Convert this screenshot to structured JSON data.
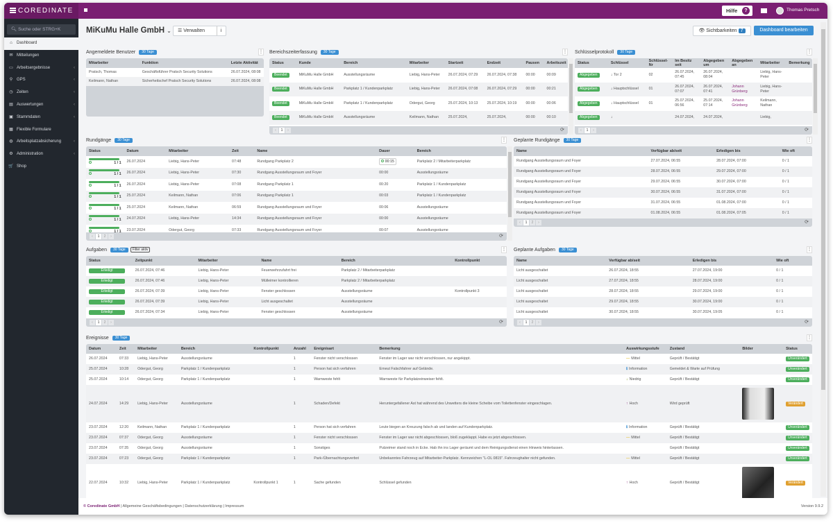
{
  "app": {
    "logo": "COREDINATE",
    "help_label": "Hilfe",
    "user_name": "Thomas Pretsch"
  },
  "colors": {
    "brand": "#7a1f72",
    "sidebar": "#22272e",
    "accent": "#3a8fd3",
    "success": "#4cae5c",
    "warning": "#e0a030"
  },
  "sidebar": {
    "search_placeholder": "Suche oder STRG+K",
    "items": [
      {
        "label": "Dashboard",
        "icon": "dashboard-icon",
        "glyph": "⌂",
        "active": true,
        "chevron": false
      },
      {
        "label": "Mitteilungen",
        "icon": "mail-icon",
        "glyph": "✉",
        "chevron": false
      },
      {
        "label": "Arbeitsergebnisse",
        "icon": "monitor-icon",
        "glyph": "▭",
        "chevron": true
      },
      {
        "label": "GPS",
        "icon": "map-pin-icon",
        "glyph": "⚲",
        "chevron": true
      },
      {
        "label": "Zeiten",
        "icon": "clock-icon",
        "glyph": "◷",
        "chevron": true
      },
      {
        "label": "Auswertungen",
        "icon": "chart-icon",
        "glyph": "▤",
        "chevron": true
      },
      {
        "label": "Stammdaten",
        "icon": "database-icon",
        "glyph": "▣",
        "chevron": true
      },
      {
        "label": "Flexible Formulare",
        "icon": "form-icon",
        "glyph": "▦",
        "chevron": false
      },
      {
        "label": "Arbeitsplatzabsicherung",
        "icon": "globe-icon",
        "glyph": "◍",
        "chevron": true
      },
      {
        "label": "Administration",
        "icon": "cogs-icon",
        "glyph": "⚙",
        "chevron": true
      },
      {
        "label": "Shop",
        "icon": "cart-icon",
        "glyph": "🛒",
        "chevron": false
      }
    ]
  },
  "header": {
    "title": "MiKuMu Halle GmbH",
    "manage_label": "Verwalten",
    "info_label": "i",
    "visibility_label": "Sichtbarkeiten",
    "visibility_count": "7",
    "edit_label": "Dashboard bearbeiten"
  },
  "tables": {
    "benutzer": {
      "title": "Angemeldete Benutzer",
      "badge": "30 Tage",
      "columns": [
        "Mitarbeiter",
        "Funktion",
        "Letzte Aktivität"
      ],
      "rows": [
        [
          "Pratsch, Thomas",
          "Geschäftsführer Pratsch Security Solutions",
          "26.07.2024, 08:08"
        ],
        [
          "Keilmann, Nathan",
          "Sicherheitschef Pratsch Security Solutions",
          "26.07.2024, 08:08"
        ]
      ]
    },
    "bereich": {
      "title": "Bereichszeiterfassung",
      "badge": "30 Tage",
      "columns": [
        "Status",
        "Kunde",
        "Bereich",
        "Mitarbeiter",
        "Startzeit",
        "Endzeit",
        "Pausen",
        "Arbeitszeit"
      ],
      "rows": [
        [
          "Beendet",
          "MiKuMu Halle GmbH",
          "Ausstellungsräume",
          "Liebig, Hans-Peter",
          "26.07.2024, 07:29",
          "26.07.2024, 07:38",
          "00:00",
          "00:09"
        ],
        [
          "Beendet",
          "MiKuMu Halle GmbH",
          "Parkplatz 1 / Kundenparkplatz",
          "Liebig, Hans-Peter",
          "26.07.2024, 07:08",
          "26.07.2024, 07:29",
          "00:00",
          "00:21"
        ],
        [
          "Beendet",
          "MiKuMu Halle GmbH",
          "Parkplatz 1 / Kundenparkplatz",
          "Odergut, Georg",
          "25.07.2024, 10:13",
          "25.07.2024, 10:19",
          "00:00",
          "00:06"
        ],
        [
          "Beendet",
          "MiKuMu Halle GmbH",
          "Ausstellungsräume",
          "Keilmann, Nathan",
          "25.07.2024,",
          "25.07.2024,",
          "00:00",
          "00:10"
        ]
      ],
      "pages": [
        "1"
      ]
    },
    "schluessel": {
      "title": "Schlüsselprotokoll",
      "badge": "30 Tage",
      "columns": [
        "Status",
        "Schlüssel",
        "Schlüssel-Nr",
        "Im Besitz seit",
        "Abgegeben um",
        "Abgegeben an",
        "Mitarbeiter",
        "Bemerkung"
      ],
      "rows": [
        [
          "Abgegeben",
          "↓ Tor 2",
          "02",
          "26.07.2024, 07:45",
          "26.07.2024, 08:04",
          "",
          "Liebig, Hans-Peter",
          ""
        ],
        [
          "Abgegeben",
          "↓ Hauptschlüssel",
          "01",
          "26.07.2024, 07:07",
          "26.07.2024, 07:41",
          "Johann Grünberg",
          "Liebig, Hans-Peter",
          ""
        ],
        [
          "Abgegeben",
          "↓ Hauptschlüssel",
          "01",
          "25.07.2024, 06:56",
          "25.07.2024, 07:14",
          "Johann Grünberg",
          "Keilmann, Nathan",
          ""
        ],
        [
          "Abgegeben",
          "↓",
          "",
          "24.07.2024,",
          "24.07.2024,",
          "",
          "Liebig,",
          ""
        ]
      ],
      "pages": [
        "1"
      ]
    },
    "rundgaenge": {
      "title": "Rundgänge",
      "badge": "30 Tage",
      "columns": [
        "Status",
        "Datum",
        "Mitarbeiter",
        "Zeit",
        "Name",
        "Dauer",
        "Bereich"
      ],
      "rows": [
        [
          "1 / 1",
          "26.07.2024",
          "Liebig, Hans-Peter",
          "07:48",
          "Rundgang Parkplatz 2",
          "00:15",
          "Parkplatz 2 / Mitarbeiterparkplatz"
        ],
        [
          "1 / 1",
          "26.07.2024",
          "Liebig, Hans-Peter",
          "07:30",
          "Rundgang Ausstellungsraum und Foyer",
          "00:00",
          "Ausstellungsräume"
        ],
        [
          "1 / 1",
          "26.07.2024",
          "Liebig, Hans-Peter",
          "07:08",
          "Rundgang Parkplatz 1",
          "00:20",
          "Parkplatz 1 / Kundenparkplatz"
        ],
        [
          "1 / 1",
          "25.07.2024",
          "Keilmann, Nathan",
          "07:06",
          "Rundgang Parkplatz 1",
          "00:03",
          "Parkplatz 1 / Kundenparkplatz"
        ],
        [
          "1 / 1",
          "25.07.2024",
          "Keilmann, Nathan",
          "06:59",
          "Rundgang Ausstellungsraum und Foyer",
          "00:06",
          "Ausstellungsräume"
        ],
        [
          "1 / 1",
          "24.07.2024",
          "Liebig, Hans-Peter",
          "14:34",
          "Rundgang Ausstellungsraum und Foyer",
          "00:00",
          "Ausstellungsräume"
        ],
        [
          "1 / 1",
          "23.07.2024",
          "Odergut, Georg",
          "07:33",
          "Rundgang Ausstellungsraum und Foyer",
          "00:07",
          "Ausstellungsräume"
        ]
      ],
      "pages": [
        "1",
        "2"
      ]
    },
    "geplRund": {
      "title": "Geplante Rundgänge",
      "badge": "30 Tage",
      "columns": [
        "Name",
        "Verfügbar ab/seit",
        "Erledigen bis",
        "Wie oft"
      ],
      "rows": [
        [
          "Rundgang Ausstellungsraum und Foyer",
          "27.07.2024, 06:55",
          "28.07.2024, 07:00",
          "0 / 1"
        ],
        [
          "Rundgang Ausstellungsraum und Foyer",
          "28.07.2024, 06:55",
          "29.07.2024, 07:00",
          "0 / 1"
        ],
        [
          "Rundgang Ausstellungsraum und Foyer",
          "29.07.2024, 06:55",
          "30.07.2024, 07:00",
          "0 / 1"
        ],
        [
          "Rundgang Ausstellungsraum und Foyer",
          "30.07.2024, 06:55",
          "31.07.2024, 07:00",
          "0 / 1"
        ],
        [
          "Rundgang Ausstellungsraum und Foyer",
          "31.07.2024, 06:55",
          "01.08.2024, 07:00",
          "0 / 1"
        ],
        [
          "Rundgang Ausstellungsraum und Foyer",
          "01.08.2024, 06:55",
          "01.08.2024, 07:05",
          "0 / 1"
        ]
      ],
      "pages": [
        "1",
        "2"
      ]
    },
    "aufgaben": {
      "title": "Aufgaben",
      "badge": "30 Tage",
      "filter": "Filter aktiv",
      "columns": [
        "Status",
        "Zeitpunkt",
        "Mitarbeiter",
        "Name",
        "Bereich",
        "Kontrollpunkt"
      ],
      "rows": [
        [
          "Erledigt",
          "26.07.2024, 07:46",
          "Liebig, Hans-Peter",
          "Feuerwehrzufahrt frei",
          "Parkplatz 2 / Mitarbeiterparkplatz",
          ""
        ],
        [
          "Erledigt",
          "26.07.2024, 07:46",
          "Liebig, Hans-Peter",
          "Mülleimer kontrollieren",
          "Parkplatz 2 / Mitarbeiterparkplatz",
          ""
        ],
        [
          "Erledigt",
          "26.07.2024, 07:39",
          "Liebig, Hans-Peter",
          "Fenster geschlossen",
          "Ausstellungsräume",
          "Kontrollpunkt 3"
        ],
        [
          "Erledigt",
          "26.07.2024, 07:39",
          "Liebig, Hans-Peter",
          "Licht ausgeschaltet",
          "Ausstellungsräume",
          ""
        ],
        [
          "Erledigt",
          "26.07.2024, 07:34",
          "Liebig, Hans-Peter",
          "Fenster geschlossen",
          "Ausstellungsräume",
          ""
        ]
      ],
      "pages": [
        "1",
        "2"
      ]
    },
    "geplAuf": {
      "title": "Geplante Aufgaben",
      "badge": "30 Tage",
      "columns": [
        "Name",
        "Verfügbar ab/seit",
        "Erledigen bis",
        "Wie oft"
      ],
      "rows": [
        [
          "Licht ausgeschaltet",
          "26.07.2024, 18:55",
          "27.07.2024, 19:00",
          "0 / 1"
        ],
        [
          "Licht ausgeschaltet",
          "27.07.2024, 18:55",
          "28.07.2024, 19:00",
          "0 / 1"
        ],
        [
          "Licht ausgeschaltet",
          "28.07.2024, 18:55",
          "29.07.2024, 19:00",
          "0 / 1"
        ],
        [
          "Licht ausgeschaltet",
          "29.07.2024, 18:55",
          "30.07.2024, 19:00",
          "0 / 1"
        ],
        [
          "Licht ausgeschaltet",
          "30.07.2024, 18:55",
          "30.07.2024, 19:05",
          "0 / 1"
        ]
      ],
      "pages": [
        "1",
        "2"
      ]
    },
    "ereignisse": {
      "title": "Ereignisse",
      "badge": "30 Tage",
      "columns": [
        "Datum",
        "Zeit",
        "Mitarbeiter",
        "Bereich",
        "Kontrollpunkt",
        "Anzahl",
        "Ereignisart",
        "Bemerkung",
        "Auswirkungsstufe",
        "Zustand",
        "Bilder",
        "Status"
      ],
      "rows": [
        [
          "26.07.2024",
          "07:33",
          "Liebig, Hans-Peter",
          "Ausstellungsräume",
          "",
          "1",
          "Fenster nicht verschlossen",
          "Fenster im Lager war nicht verschlossen, nur angekippt.",
          "Mittel",
          "Geprüft / Bestätigt",
          "",
          "Unverändert"
        ],
        [
          "25.07.2024",
          "10:28",
          "Odergut, Georg",
          "Parkplatz 1 / Kundenparkplatz",
          "",
          "1",
          "Person hat sich verfahren",
          "Erneut Falschfahrer auf Gelände.",
          "Information",
          "Gemeldet & Warte auf Prüfung",
          "",
          "Unverändert"
        ],
        [
          "25.07.2024",
          "10:14",
          "Odergut, Georg",
          "Parkplatz 1 / Kundenparkplatz",
          "",
          "1",
          "Warnweste fehlt",
          "Warnweste für Parkplatzeinweiser fehlt.",
          "Niedrig",
          "Geprüft / Bestätigt",
          "",
          "Unverändert"
        ],
        [
          "24.07.2024",
          "14:29",
          "Liebig, Hans-Peter",
          "Ausstellungsräume",
          "",
          "1",
          "Schaden/Defekt",
          "Heruntergefallener Ast hat während des Unwetters die kleine Scheibe vom Toilettenfenster eingeschlagen.",
          "Hoch",
          "Wird geprüft",
          "photo-window",
          "Verändert"
        ],
        [
          "23.07.2024",
          "12:20",
          "Keilmann, Nathan",
          "Parkplatz 1 / Kundenparkplatz",
          "",
          "1",
          "Person hat sich verfahren",
          "Leute biegen an Kreuzung falsch ab und landen auf Kundenparkplatz.",
          "Information",
          "Geprüft / Bestätigt",
          "",
          "Unverändert"
        ],
        [
          "23.07.2024",
          "07:37",
          "Odergut, Georg",
          "Ausstellungsräume",
          "",
          "1",
          "Fenster nicht verschlossen",
          "Fenster im Lager war nicht abgeschlossen, bloß zugeklappt. Habe es jetzt abgeschlossen.",
          "Mittel",
          "Geprüft / Bestätigt",
          "",
          "Unverändert"
        ],
        [
          "23.07.2024",
          "07:35",
          "Odergut, Georg",
          "Ausstellungsräume",
          "",
          "1",
          "Sonstiges",
          "Putzeimer stand noch in Ecke. Hab ihn ins Lager geräumt und dem Reinigungsdienst einen Hinweis hinterlassen.",
          "",
          "Geprüft / Bestätigt",
          "",
          "Unverändert"
        ],
        [
          "23.07.2024",
          "07:23",
          "Odergut, Georg",
          "Parkplatz 1 / Kundenparkplatz",
          "",
          "1",
          "Park-/Übernachtungsverbot",
          "Unbekanntes Fahrzeug auf Mitarbeiter-Parkplatz. Kennzeichen \"L-OL 0815\". Fahrzeughalter nicht gefunden.",
          "Mittel",
          "Geprüft / Bestätigt",
          "",
          "Unverändert"
        ],
        [
          "22.07.2024",
          "10:32",
          "Liebig, Hans-Peter",
          "Parkplatz 1 / Kundenparkplatz",
          "Kontrollpunkt 1",
          "1",
          "Sache gefunden",
          "Schlüssel gefunden",
          "Hoch",
          "Geprüft / Bestätigt",
          "photo-keys",
          "Verändert"
        ]
      ]
    }
  },
  "footer": {
    "company": "© Coredinate GmbH",
    "links": " | Allgemeine Geschäftsbedingungen | Datenschutzerklärung | Impressum",
    "version": "Version 9.9.2"
  }
}
